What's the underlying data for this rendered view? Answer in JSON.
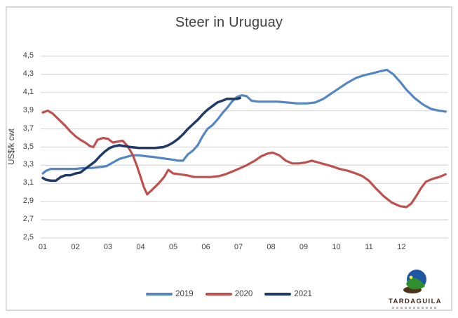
{
  "title": "Steer in Uruguay",
  "logo": {
    "text": "TARDAGUILA"
  },
  "colors": {
    "grid": "#D9D9D9",
    "axis_text": "#404040",
    "series_2019": "#5486C4",
    "series_2020": "#C0504D",
    "series_2021": "#1F3A68"
  },
  "chart_data": {
    "type": "line",
    "title": "Steer in Uruguay",
    "xlabel": "",
    "ylabel": "US$/k cwt",
    "x_unit": "month (weekly points)",
    "xticks": [
      "01",
      "02",
      "03",
      "04",
      "05",
      "06",
      "07",
      "08",
      "09",
      "10",
      "11",
      "12"
    ],
    "yticks": [
      "4,5",
      "4,3",
      "4,1",
      "3,9",
      "3,7",
      "3,5",
      "3,3",
      "3,1",
      "2,9",
      "2,7",
      "2,5"
    ],
    "ylim": [
      2.5,
      4.5
    ],
    "xlim": [
      1,
      13.4
    ],
    "grid": "horizontal",
    "legend_position": "bottom",
    "series": [
      {
        "name": "2019",
        "color": "#5486C4",
        "points": [
          [
            1.0,
            3.21
          ],
          [
            1.1,
            3.24
          ],
          [
            1.25,
            3.26
          ],
          [
            1.5,
            3.26
          ],
          [
            1.75,
            3.26
          ],
          [
            2.0,
            3.26
          ],
          [
            2.25,
            3.27
          ],
          [
            2.5,
            3.27
          ],
          [
            2.75,
            3.28
          ],
          [
            2.95,
            3.29
          ],
          [
            3.15,
            3.33
          ],
          [
            3.35,
            3.37
          ],
          [
            3.55,
            3.39
          ],
          [
            3.75,
            3.41
          ],
          [
            3.95,
            3.41
          ],
          [
            4.15,
            3.4
          ],
          [
            4.4,
            3.39
          ],
          [
            4.6,
            3.38
          ],
          [
            4.8,
            3.37
          ],
          [
            5.0,
            3.36
          ],
          [
            5.15,
            3.35
          ],
          [
            5.3,
            3.35
          ],
          [
            5.45,
            3.42
          ],
          [
            5.6,
            3.46
          ],
          [
            5.75,
            3.52
          ],
          [
            5.9,
            3.62
          ],
          [
            6.05,
            3.7
          ],
          [
            6.2,
            3.74
          ],
          [
            6.35,
            3.8
          ],
          [
            6.5,
            3.87
          ],
          [
            6.65,
            3.93
          ],
          [
            6.8,
            4.0
          ],
          [
            6.95,
            4.05
          ],
          [
            7.1,
            4.07
          ],
          [
            7.25,
            4.06
          ],
          [
            7.4,
            4.01
          ],
          [
            7.6,
            4.0
          ],
          [
            7.9,
            4.0
          ],
          [
            8.2,
            4.0
          ],
          [
            8.5,
            3.99
          ],
          [
            8.8,
            3.98
          ],
          [
            9.1,
            3.98
          ],
          [
            9.35,
            3.99
          ],
          [
            9.6,
            4.03
          ],
          [
            9.85,
            4.09
          ],
          [
            10.1,
            4.15
          ],
          [
            10.35,
            4.21
          ],
          [
            10.6,
            4.26
          ],
          [
            10.85,
            4.29
          ],
          [
            11.1,
            4.31
          ],
          [
            11.3,
            4.33
          ],
          [
            11.55,
            4.35
          ],
          [
            11.75,
            4.3
          ],
          [
            11.95,
            4.22
          ],
          [
            12.15,
            4.13
          ],
          [
            12.4,
            4.04
          ],
          [
            12.65,
            3.97
          ],
          [
            12.9,
            3.92
          ],
          [
            13.15,
            3.9
          ],
          [
            13.35,
            3.89
          ]
        ]
      },
      {
        "name": "2020",
        "color": "#C0504D",
        "points": [
          [
            1.0,
            3.88
          ],
          [
            1.15,
            3.9
          ],
          [
            1.3,
            3.87
          ],
          [
            1.5,
            3.8
          ],
          [
            1.7,
            3.73
          ],
          [
            1.85,
            3.67
          ],
          [
            2.0,
            3.62
          ],
          [
            2.15,
            3.58
          ],
          [
            2.3,
            3.55
          ],
          [
            2.45,
            3.51
          ],
          [
            2.55,
            3.5
          ],
          [
            2.68,
            3.58
          ],
          [
            2.85,
            3.6
          ],
          [
            3.0,
            3.59
          ],
          [
            3.15,
            3.55
          ],
          [
            3.3,
            3.56
          ],
          [
            3.45,
            3.57
          ],
          [
            3.6,
            3.51
          ],
          [
            3.75,
            3.42
          ],
          [
            3.88,
            3.3
          ],
          [
            4.0,
            3.17
          ],
          [
            4.1,
            3.06
          ],
          [
            4.2,
            2.98
          ],
          [
            4.35,
            3.03
          ],
          [
            4.55,
            3.1
          ],
          [
            4.72,
            3.17
          ],
          [
            4.85,
            3.25
          ],
          [
            5.0,
            3.21
          ],
          [
            5.2,
            3.2
          ],
          [
            5.4,
            3.19
          ],
          [
            5.65,
            3.17
          ],
          [
            5.9,
            3.17
          ],
          [
            6.15,
            3.17
          ],
          [
            6.4,
            3.18
          ],
          [
            6.6,
            3.2
          ],
          [
            6.8,
            3.23
          ],
          [
            7.0,
            3.26
          ],
          [
            7.25,
            3.3
          ],
          [
            7.5,
            3.35
          ],
          [
            7.7,
            3.4
          ],
          [
            7.9,
            3.43
          ],
          [
            8.05,
            3.44
          ],
          [
            8.25,
            3.41
          ],
          [
            8.45,
            3.35
          ],
          [
            8.65,
            3.32
          ],
          [
            8.85,
            3.32
          ],
          [
            9.05,
            3.33
          ],
          [
            9.25,
            3.35
          ],
          [
            9.45,
            3.33
          ],
          [
            9.65,
            3.31
          ],
          [
            9.85,
            3.29
          ],
          [
            10.1,
            3.26
          ],
          [
            10.35,
            3.24
          ],
          [
            10.6,
            3.21
          ],
          [
            10.8,
            3.18
          ],
          [
            11.0,
            3.13
          ],
          [
            11.2,
            3.05
          ],
          [
            11.45,
            2.96
          ],
          [
            11.7,
            2.89
          ],
          [
            11.95,
            2.85
          ],
          [
            12.15,
            2.84
          ],
          [
            12.3,
            2.88
          ],
          [
            12.45,
            2.96
          ],
          [
            12.6,
            3.05
          ],
          [
            12.75,
            3.12
          ],
          [
            12.95,
            3.15
          ],
          [
            13.15,
            3.17
          ],
          [
            13.35,
            3.2
          ]
        ]
      },
      {
        "name": "2021",
        "color": "#1F3A68",
        "points": [
          [
            1.0,
            3.16
          ],
          [
            1.1,
            3.14
          ],
          [
            1.25,
            3.13
          ],
          [
            1.4,
            3.13
          ],
          [
            1.55,
            3.17
          ],
          [
            1.7,
            3.19
          ],
          [
            1.85,
            3.19
          ],
          [
            2.0,
            3.21
          ],
          [
            2.15,
            3.22
          ],
          [
            2.3,
            3.26
          ],
          [
            2.45,
            3.3
          ],
          [
            2.6,
            3.34
          ],
          [
            2.75,
            3.4
          ],
          [
            2.9,
            3.45
          ],
          [
            3.05,
            3.49
          ],
          [
            3.2,
            3.51
          ],
          [
            3.35,
            3.52
          ],
          [
            3.5,
            3.51
          ],
          [
            3.7,
            3.5
          ],
          [
            3.95,
            3.49
          ],
          [
            4.2,
            3.49
          ],
          [
            4.45,
            3.49
          ],
          [
            4.7,
            3.5
          ],
          [
            4.85,
            3.52
          ],
          [
            5.0,
            3.55
          ],
          [
            5.15,
            3.59
          ],
          [
            5.3,
            3.64
          ],
          [
            5.45,
            3.7
          ],
          [
            5.6,
            3.75
          ],
          [
            5.75,
            3.8
          ],
          [
            5.9,
            3.86
          ],
          [
            6.05,
            3.91
          ],
          [
            6.2,
            3.95
          ],
          [
            6.35,
            3.99
          ],
          [
            6.5,
            4.01
          ],
          [
            6.65,
            4.03
          ],
          [
            6.8,
            4.03
          ],
          [
            6.95,
            4.03
          ],
          [
            7.05,
            4.04
          ]
        ]
      }
    ]
  }
}
